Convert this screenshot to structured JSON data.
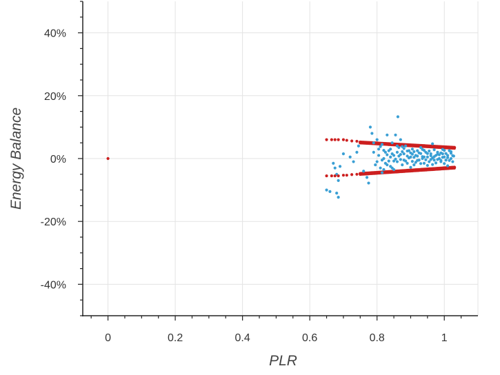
{
  "chart_data": {
    "type": "scatter",
    "title": "",
    "xlabel": "PLR",
    "ylabel": "Energy Balance",
    "xlim": [
      -0.075,
      1.1
    ],
    "ylim": [
      -50,
      50
    ],
    "x_ticks": [
      0,
      0.2,
      0.4,
      0.6,
      0.8,
      1
    ],
    "x_tick_labels": [
      "0",
      "0.2",
      "0.4",
      "0.6",
      "0.8",
      "1"
    ],
    "y_ticks": [
      40,
      20,
      0,
      -20,
      -40
    ],
    "y_tick_labels": [
      "40%",
      "20%",
      "0%",
      "-20%",
      "-40%"
    ],
    "grid": true,
    "legend": "none",
    "colors": {
      "measured": "#3a9fd4",
      "bounds": "#cc1f1f",
      "grid": "#e3e3e3",
      "axis": "#222222"
    },
    "series": [
      {
        "style": "dots",
        "color": "#3a9fd4",
        "points": [
          [
            0.65,
            -10
          ],
          [
            0.66,
            -10.5
          ],
          [
            0.68,
            -11
          ],
          [
            0.685,
            -12.3
          ],
          [
            0.67,
            -1.5
          ],
          [
            0.675,
            -3
          ],
          [
            0.68,
            -5
          ],
          [
            0.685,
            -7
          ],
          [
            0.69,
            -2.5
          ],
          [
            0.7,
            1.5
          ],
          [
            0.72,
            0.5
          ],
          [
            0.73,
            -1
          ],
          [
            0.74,
            2
          ],
          [
            0.745,
            4
          ],
          [
            0.76,
            -4
          ],
          [
            0.77,
            -6
          ],
          [
            0.775,
            -7.8
          ],
          [
            0.78,
            10
          ],
          [
            0.785,
            8
          ],
          [
            0.79,
            2
          ],
          [
            0.795,
            -2
          ],
          [
            0.8,
            6
          ],
          [
            0.805,
            3
          ],
          [
            0.81,
            -3
          ],
          [
            0.815,
            4.5
          ],
          [
            0.82,
            0
          ],
          [
            0.825,
            -1.5
          ],
          [
            0.83,
            7.5
          ],
          [
            0.835,
            2.5
          ],
          [
            0.84,
            -2.5
          ],
          [
            0.845,
            5
          ],
          [
            0.85,
            1
          ],
          [
            0.855,
            7.5
          ],
          [
            0.86,
            -1
          ],
          [
            0.862,
            13.3
          ],
          [
            0.865,
            3.5
          ],
          [
            0.87,
            6
          ],
          [
            0.875,
            -2
          ],
          [
            0.88,
            1.5
          ],
          [
            0.885,
            4
          ],
          [
            0.89,
            -1.5
          ],
          [
            0.895,
            2.5
          ],
          [
            0.9,
            0.5
          ],
          [
            0.905,
            3
          ],
          [
            0.91,
            -2
          ],
          [
            0.915,
            1
          ],
          [
            0.92,
            2.5
          ],
          [
            0.925,
            -0.5
          ],
          [
            0.93,
            3.5
          ],
          [
            0.935,
            0
          ],
          [
            0.94,
            -1.5
          ],
          [
            0.945,
            2
          ],
          [
            0.95,
            0.5
          ],
          [
            0.955,
            -1
          ],
          [
            0.96,
            1.5
          ],
          [
            0.965,
            4.7
          ],
          [
            0.97,
            -0.5
          ],
          [
            0.975,
            1
          ],
          [
            0.98,
            2
          ],
          [
            0.985,
            0
          ],
          [
            0.99,
            -1
          ],
          [
            0.995,
            1.5
          ],
          [
            1.0,
            0.5
          ],
          [
            1.005,
            -0.5
          ],
          [
            1.01,
            1
          ],
          [
            1.015,
            2.5
          ],
          [
            1.02,
            0
          ],
          [
            1.025,
            -1
          ],
          [
            1.028,
            0.8
          ],
          [
            0.805,
            1
          ],
          [
            0.815,
            -0.5
          ],
          [
            0.825,
            2
          ],
          [
            0.835,
            -0.8
          ],
          [
            0.845,
            1.5
          ],
          [
            0.855,
            -0.2
          ],
          [
            0.865,
            0.8
          ],
          [
            0.875,
            2.2
          ],
          [
            0.885,
            -0.8
          ],
          [
            0.895,
            0.2
          ],
          [
            0.905,
            1.4
          ],
          [
            0.915,
            -1.2
          ],
          [
            0.925,
            1.8
          ],
          [
            0.935,
            0.6
          ],
          [
            0.945,
            -0.4
          ],
          [
            0.955,
            2.4
          ],
          [
            0.965,
            0.2
          ],
          [
            0.975,
            -1.4
          ],
          [
            0.985,
            1.2
          ],
          [
            0.995,
            0.4
          ],
          [
            1.005,
            1.6
          ],
          [
            1.015,
            -0.6
          ],
          [
            1.025,
            0.9
          ],
          [
            0.79,
            5
          ],
          [
            0.8,
            -1
          ],
          [
            0.81,
            3.8
          ],
          [
            0.82,
            -3.5
          ],
          [
            0.83,
            1.2
          ],
          [
            0.84,
            3
          ],
          [
            0.85,
            -3.5
          ],
          [
            0.86,
            4
          ],
          [
            0.87,
            -0.3
          ],
          [
            0.88,
            3.2
          ],
          [
            0.89,
            0.8
          ],
          [
            0.9,
            -2.8
          ],
          [
            0.91,
            2.2
          ],
          [
            0.92,
            -0.6
          ],
          [
            0.93,
            1.6
          ],
          [
            0.94,
            2.6
          ],
          [
            0.95,
            -2.2
          ],
          [
            0.96,
            0.9
          ],
          [
            0.97,
            2.8
          ],
          [
            0.98,
            -0.3
          ],
          [
            0.99,
            1.8
          ],
          [
            1.0,
            -1.6
          ],
          [
            1.01,
            0.3
          ],
          [
            1.02,
            1.7
          ],
          [
            0.84,
            0.5
          ],
          [
            0.86,
            2
          ],
          [
            0.88,
            -0.5
          ],
          [
            0.9,
            1.8
          ],
          [
            0.92,
            0.8
          ],
          [
            0.94,
            0.5
          ],
          [
            0.96,
            -0.3
          ],
          [
            0.98,
            1.4
          ],
          [
            1.0,
            2.6
          ],
          [
            0.83,
            -2
          ],
          [
            0.87,
            1.3
          ],
          [
            0.91,
            0.4
          ],
          [
            0.95,
            1.6
          ],
          [
            0.99,
            -0.6
          ],
          [
            1.02,
            2.2
          ],
          [
            0.82,
            2.6
          ],
          [
            0.85,
            -0.8
          ],
          [
            0.89,
            2.4
          ],
          [
            0.93,
            -1.6
          ],
          [
            0.97,
            0.6
          ],
          [
            1.01,
            -2.3
          ],
          [
            0.815,
            -4.5
          ],
          [
            0.845,
            -3
          ],
          [
            0.875,
            3.8
          ],
          [
            0.905,
            -0.9
          ],
          [
            0.935,
            2.9
          ],
          [
            0.965,
            -1.9
          ],
          [
            0.995,
            2.9
          ]
        ]
      },
      {
        "style": "dots",
        "color": "#cc1f1f",
        "points": [
          [
            0.0,
            0.0
          ],
          [
            0.65,
            6
          ],
          [
            0.665,
            6
          ],
          [
            0.675,
            6
          ],
          [
            0.685,
            6
          ],
          [
            0.7,
            6
          ],
          [
            0.71,
            5.8
          ],
          [
            0.65,
            -5.5
          ],
          [
            0.665,
            -5.5
          ],
          [
            0.675,
            -5.5
          ],
          [
            0.685,
            -5.5
          ],
          [
            0.7,
            -5.3
          ],
          [
            0.71,
            -5.3
          ],
          [
            0.725,
            5.6
          ],
          [
            0.74,
            5.5
          ],
          [
            0.725,
            -5.1
          ],
          [
            0.74,
            -5.0
          ]
        ]
      }
    ],
    "bands": [
      {
        "color": "#cc1f1f",
        "upper": [
          [
            0.75,
            5.2
          ],
          [
            1.03,
            3.5
          ]
        ],
        "lower": [
          [
            0.75,
            -4.8
          ],
          [
            1.03,
            -2.8
          ]
        ]
      }
    ]
  }
}
